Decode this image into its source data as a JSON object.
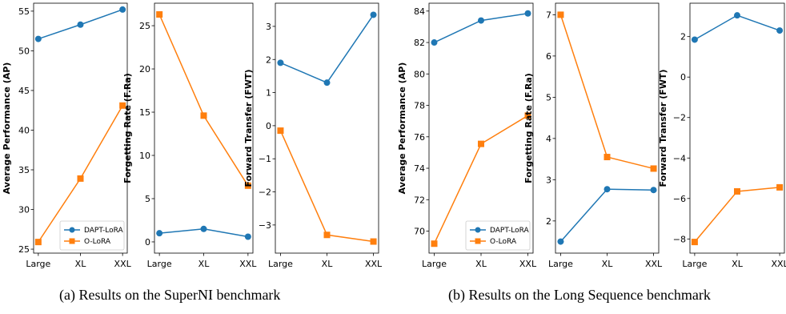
{
  "captions": {
    "a": "(a)  Results on the SuperNI benchmark",
    "b": "(b)  Results on the Long Sequence benchmark"
  },
  "colors": {
    "dapt": "#1f77b4",
    "olora": "#ff7f0e"
  },
  "chart_data": [
    {
      "type": "line",
      "group": "a",
      "categories": [
        "Large",
        "XL",
        "XXL"
      ],
      "ylabel": "Average Performance (AP)",
      "ylim": [
        24.5,
        56
      ],
      "yticks": [
        25,
        30,
        35,
        40,
        45,
        50,
        55
      ],
      "legend": "bottom-right",
      "series": [
        {
          "name": "DAPT-LoRA",
          "marker": "circle",
          "values": [
            51.5,
            53.3,
            55.2
          ]
        },
        {
          "name": "O-LoRA",
          "marker": "square",
          "values": [
            25.9,
            33.9,
            43.1
          ]
        }
      ]
    },
    {
      "type": "line",
      "group": "a",
      "categories": [
        "Large",
        "XL",
        "XXL"
      ],
      "ylabel": "Forgetting Rate (F.Ra)",
      "ylim": [
        -1.3,
        27.6
      ],
      "yticks": [
        0,
        5,
        10,
        15,
        20,
        25
      ],
      "series": [
        {
          "name": "DAPT-LoRA",
          "marker": "circle",
          "values": [
            1.0,
            1.5,
            0.6
          ]
        },
        {
          "name": "O-LoRA",
          "marker": "square",
          "values": [
            26.3,
            14.6,
            6.5
          ]
        }
      ]
    },
    {
      "type": "line",
      "group": "a",
      "categories": [
        "Large",
        "XL",
        "XXL"
      ],
      "ylabel": "Forward Transfer (FWT)",
      "ylim": [
        -3.85,
        3.7
      ],
      "yticks": [
        -3,
        -2,
        -1,
        0,
        1,
        2,
        3
      ],
      "series": [
        {
          "name": "DAPT-LoRA",
          "marker": "circle",
          "values": [
            1.9,
            1.3,
            3.35
          ]
        },
        {
          "name": "O-LoRA",
          "marker": "square",
          "values": [
            -0.15,
            -3.3,
            -3.5
          ]
        }
      ]
    },
    {
      "type": "line",
      "group": "b",
      "categories": [
        "Large",
        "XL",
        "XXL"
      ],
      "ylabel": "Average Performance (AP)",
      "ylim": [
        68.6,
        84.5
      ],
      "yticks": [
        70,
        72,
        74,
        76,
        78,
        80,
        82,
        84
      ],
      "legend": "bottom-right",
      "series": [
        {
          "name": "DAPT-LoRA",
          "marker": "circle",
          "values": [
            82.0,
            83.4,
            83.85
          ]
        },
        {
          "name": "O-LoRA",
          "marker": "square",
          "values": [
            69.2,
            75.55,
            77.35
          ]
        }
      ]
    },
    {
      "type": "line",
      "group": "b",
      "categories": [
        "Large",
        "XL",
        "XXL"
      ],
      "ylabel": "Forgetting Rate (F.Ra)",
      "ylim": [
        1.22,
        7.28
      ],
      "yticks": [
        2,
        3,
        4,
        5,
        6,
        7
      ],
      "series": [
        {
          "name": "DAPT-LoRA",
          "marker": "circle",
          "values": [
            1.5,
            2.77,
            2.75
          ]
        },
        {
          "name": "O-LoRA",
          "marker": "square",
          "values": [
            7.0,
            3.55,
            3.27
          ]
        }
      ]
    },
    {
      "type": "line",
      "group": "b",
      "categories": [
        "Large",
        "XL",
        "XXL"
      ],
      "ylabel": "Forward Transfer (FWT)",
      "ylim": [
        -8.7,
        3.65
      ],
      "yticks": [
        -8,
        -6,
        -4,
        -2,
        0,
        2
      ],
      "series": [
        {
          "name": "DAPT-LoRA",
          "marker": "circle",
          "values": [
            1.85,
            3.05,
            2.3
          ]
        },
        {
          "name": "O-LoRA",
          "marker": "square",
          "values": [
            -8.15,
            -5.65,
            -5.45
          ]
        }
      ]
    }
  ]
}
